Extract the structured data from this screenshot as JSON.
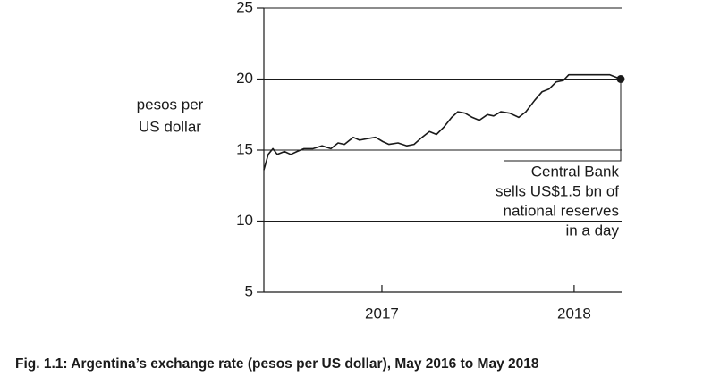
{
  "chart_data": {
    "type": "line",
    "title": "Fig. 1.1: Argentina’s exchange rate (pesos per US dollar), May 2016 to May 2018",
    "y_label": [
      "pesos per",
      "US dollar"
    ],
    "annotation": [
      "Central Bank",
      "sells US$1.5 bn of",
      "national reserves",
      "in a day"
    ],
    "x": [
      2016.386,
      2016.409,
      2016.433,
      2016.456,
      2016.493,
      2016.526,
      2016.558,
      2016.595,
      2016.642,
      2016.688,
      2016.735,
      2016.772,
      2016.805,
      2016.851,
      2016.884,
      2016.921,
      2016.967,
      2017.005,
      2017.037,
      2017.084,
      2017.13,
      2017.167,
      2017.209,
      2017.247,
      2017.284,
      2017.321,
      2017.363,
      2017.395,
      2017.433,
      2017.47,
      2017.507,
      2017.549,
      2017.581,
      2017.619,
      2017.665,
      2017.712,
      2017.749,
      2017.795,
      2017.833,
      2017.87,
      2017.907,
      2017.944,
      2017.972,
      2018.014,
      2018.084,
      2018.186,
      2018.242
    ],
    "values": [
      13.6,
      14.7,
      15.1,
      14.7,
      14.9,
      14.7,
      14.9,
      15.1,
      15.1,
      15.3,
      15.1,
      15.5,
      15.4,
      15.9,
      15.7,
      15.8,
      15.9,
      15.6,
      15.4,
      15.5,
      15.3,
      15.4,
      15.9,
      16.3,
      16.1,
      16.6,
      17.3,
      17.7,
      17.6,
      17.3,
      17.1,
      17.5,
      17.4,
      17.7,
      17.6,
      17.3,
      17.7,
      18.5,
      19.1,
      19.3,
      19.8,
      19.9,
      20.3,
      20.3,
      20.3,
      20.3,
      20.0
    ],
    "color": "#1a1a1a",
    "end_marker": true,
    "xlim": [
      2016.386,
      2018.247
    ],
    "xticks": [
      2017,
      2018
    ],
    "ylim": [
      5,
      25
    ],
    "yticks": [
      5,
      10,
      15,
      20,
      25
    ],
    "grid": true
  }
}
